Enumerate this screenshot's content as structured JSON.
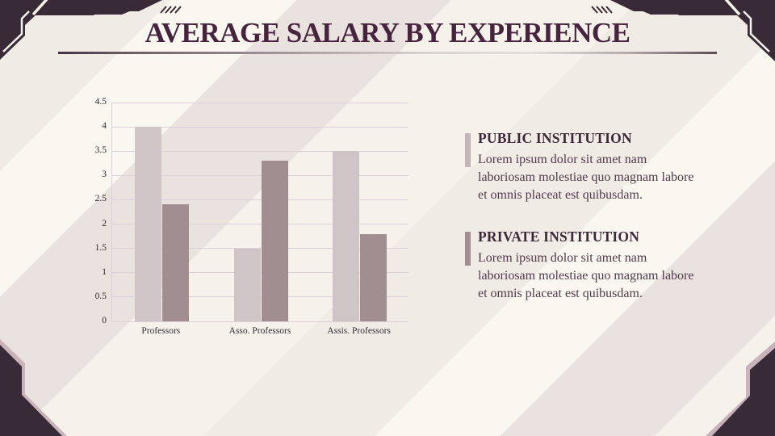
{
  "slide": {
    "title": "AVERAGE SALARY BY EXPERIENCE"
  },
  "chart_data": {
    "type": "bar",
    "title": "Average salary by experience",
    "categories": [
      "Professors",
      "Asso. Professors",
      "Assis. Professors"
    ],
    "series": [
      {
        "name": "Public institution",
        "color": "#cfc5c6",
        "values": [
          4,
          1.5,
          3.5
        ]
      },
      {
        "name": "Private institution",
        "color": "#a18e90",
        "values": [
          2.4,
          3.3,
          1.8
        ]
      }
    ],
    "xlabel": "",
    "ylabel": "",
    "ylim": [
      0,
      4.5
    ],
    "yticks": [
      0,
      0.5,
      1,
      1.5,
      2,
      2.5,
      3,
      3.5,
      4,
      4.5
    ],
    "grid": true,
    "legend_position": "right text blocks"
  },
  "sections": [
    {
      "heading": "PUBLIC INSTITUTION",
      "body": "Lorem ipsum dolor sit amet nam laboriosam molestiae quo magnam labore et omnis placeat est quibusdam.",
      "marker_color": "#c2b6b8"
    },
    {
      "heading": "PRIVATE INSTITUTION",
      "body": "Lorem ipsum dolor sit amet nam laboriosam molestiae quo magnam labore et omnis placeat est quibusdam.",
      "marker_color": "#a18e90"
    }
  ],
  "colors": {
    "background": "#f6f1ea",
    "stripe-light": "#faf6f0",
    "stripe-mid": "#f1ebe6",
    "stripe-dark": "#e9e2de",
    "deco-dark": "#382b37",
    "deco-cream": "#f6f2eb",
    "deco-edge": "#c8b3ba",
    "title": "#46243e",
    "heading": "#3c2838",
    "body-text": "#503a4b",
    "axis-label": "#332b31",
    "gridline": "#ddd0dc"
  }
}
